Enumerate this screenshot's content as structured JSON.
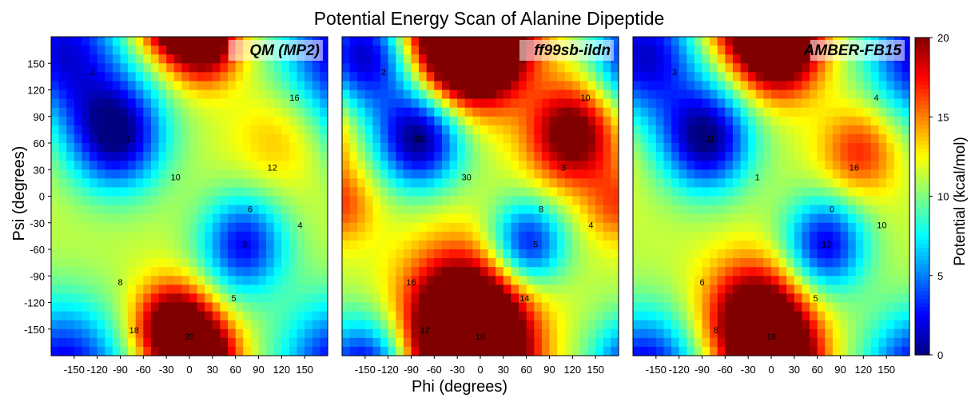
{
  "chart_data": {
    "type": "heatmap",
    "title": "Potential Energy Scan of Alanine Dipeptide",
    "xlabel": "Phi (degrees)",
    "ylabel": "Psi (degrees)",
    "xlim": [
      -180,
      180
    ],
    "ylim": [
      -180,
      180
    ],
    "x_ticks": [
      "-150",
      "-120",
      "-90",
      "-60",
      "-30",
      "0",
      "30",
      "60",
      "90",
      "120",
      "150"
    ],
    "y_ticks": [
      "150",
      "120",
      "90",
      "60",
      "30",
      "0",
      "-30",
      "-60",
      "-90",
      "-120",
      "-150"
    ],
    "colorbar": {
      "label": "Potential (kcal/mol)",
      "range": [
        0,
        20
      ],
      "ticks": [
        "20",
        "15",
        "10",
        "5",
        "0"
      ],
      "colormap": "jet"
    },
    "panels": [
      {
        "name": "QM (MP2)",
        "basins": [
          {
            "phi": -95,
            "psi": 70,
            "energy": 0,
            "width": 45
          },
          {
            "phi": 70,
            "psi": -55,
            "energy": 2.5,
            "width": 40
          },
          {
            "phi": -165,
            "psi": 165,
            "energy": 2,
            "width": 55
          }
        ],
        "peaks": [
          {
            "phi": 20,
            "psi": 175,
            "energy": 22,
            "width": 32
          },
          {
            "phi": -20,
            "psi": -150,
            "energy": 24,
            "width": 35
          },
          {
            "phi": 115,
            "psi": 65,
            "energy": 14,
            "width": 40
          }
        ],
        "contour_labels": [
          "2",
          "1",
          "10",
          "12",
          "6",
          "3",
          "4",
          "8",
          "5",
          "16",
          "18",
          "20"
        ]
      },
      {
        "name": "ff99sb-ildn",
        "basins": [
          {
            "phi": -80,
            "psi": 65,
            "energy": 0,
            "width": 40
          },
          {
            "phi": 60,
            "psi": -55,
            "energy": 2,
            "width": 35
          },
          {
            "phi": -150,
            "psi": 160,
            "energy": 1,
            "width": 45
          }
        ],
        "peaks": [
          {
            "phi": -10,
            "psi": 170,
            "energy": 28,
            "width": 45
          },
          {
            "phi": -20,
            "psi": -140,
            "energy": 26,
            "width": 55
          },
          {
            "phi": 120,
            "psi": 70,
            "energy": 22,
            "width": 40
          },
          {
            "phi": -180,
            "psi": -10,
            "energy": 16,
            "width": 30
          }
        ],
        "contour_labels": [
          "2",
          "20",
          "30",
          "3",
          "8",
          "5",
          "4",
          "16",
          "14",
          "10",
          "12",
          "18"
        ]
      },
      {
        "name": "AMBER-FB15",
        "basins": [
          {
            "phi": -85,
            "psi": 65,
            "energy": 0,
            "width": 42
          },
          {
            "phi": 70,
            "psi": -55,
            "energy": 2,
            "width": 38
          },
          {
            "phi": -165,
            "psi": 160,
            "energy": 1.5,
            "width": 50
          }
        ],
        "peaks": [
          {
            "phi": 10,
            "psi": 170,
            "energy": 24,
            "width": 38
          },
          {
            "phi": -20,
            "psi": -140,
            "energy": 24,
            "width": 45
          },
          {
            "phi": 115,
            "psi": 50,
            "energy": 17,
            "width": 35
          }
        ],
        "contour_labels": [
          "3",
          "11",
          "1",
          "16",
          "0",
          "12",
          "10",
          "6",
          "5",
          "4",
          "8",
          "18"
        ]
      }
    ]
  }
}
